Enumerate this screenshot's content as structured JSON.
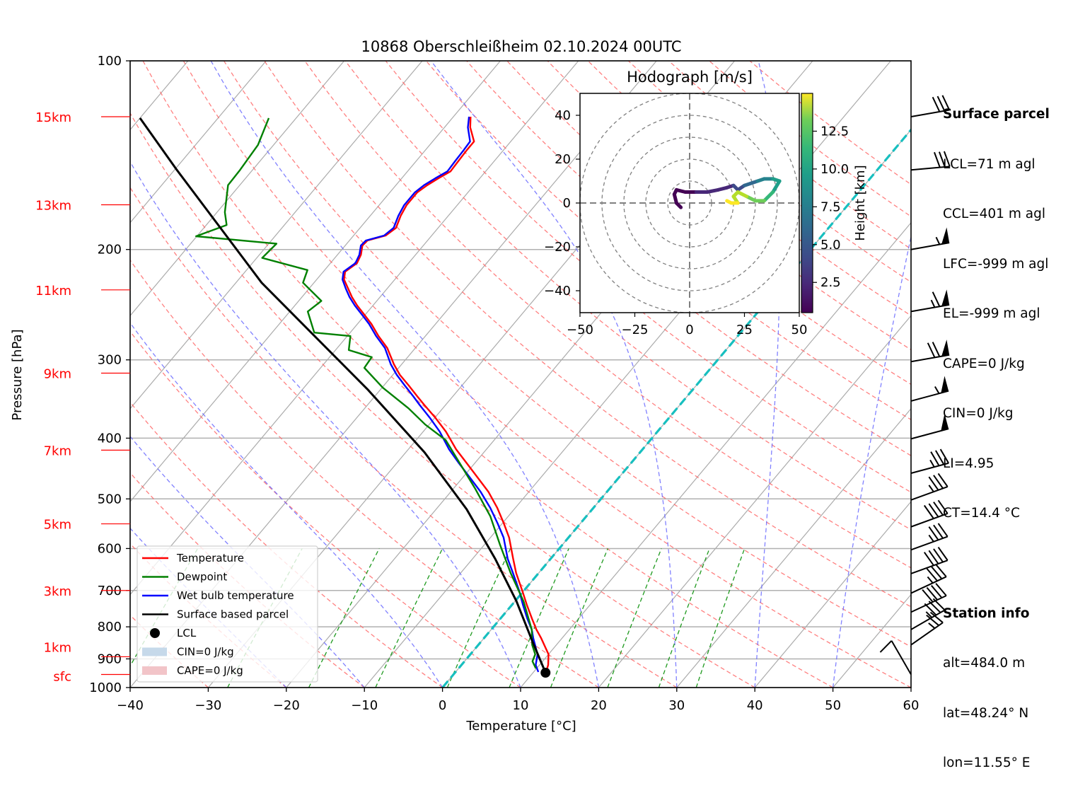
{
  "chart_data": {
    "type": "skewt",
    "title": "10868 Oberschleißheim 02.10.2024 00UTC",
    "xlabel": "Temperature [°C]",
    "ylabel": "Pressure [hPa]",
    "xlim": [
      -40,
      60
    ],
    "ylim_hpa": [
      1000,
      100
    ],
    "x_ticks": [
      -40,
      -30,
      -20,
      -10,
      0,
      10,
      20,
      30,
      40,
      50,
      60
    ],
    "x_tick_labels": [
      "−40",
      "−30",
      "−20",
      "−10",
      "0",
      "10",
      "20",
      "30",
      "40",
      "50",
      "60"
    ],
    "p_ticks": [
      100,
      200,
      300,
      400,
      500,
      600,
      700,
      800,
      900,
      1000
    ],
    "p_tick_labels": [
      "100",
      "200",
      "300",
      "400",
      "500",
      "600",
      "700",
      "800",
      "900",
      "1000"
    ],
    "height_markers": [
      {
        "label": "15km",
        "p": 122.8
      },
      {
        "label": "13km",
        "p": 169.7
      },
      {
        "label": "11km",
        "p": 232.0
      },
      {
        "label": "9km",
        "p": 315.0
      },
      {
        "label": "7km",
        "p": 418.0
      },
      {
        "label": "5km",
        "p": 548.0
      },
      {
        "label": "3km",
        "p": 700.0
      },
      {
        "label": "1km",
        "p": 893.0
      },
      {
        "label": "sfc",
        "p": 953.0
      }
    ],
    "grid": true,
    "freezing_isotherm_c": 0,
    "series": [
      {
        "name": "Temperature",
        "color": "#ff0000",
        "p": [
          122.8,
          127.7,
          134.5,
          138.8,
          144.6,
          150.1,
          154.0,
          157.9,
          162.1,
          169.9,
          176.7,
          184.7,
          190.0,
          193.5,
          197.1,
          203.9,
          210.3,
          217.0,
          223.3,
          230.9,
          238.2,
          245.8,
          254.2,
          263.0,
          274.9,
          287.2,
          304.9,
          317.0,
          329.7,
          342.8,
          353.6,
          370.7,
          390.4,
          416.6,
          438.8,
          462.2,
          486.9,
          516.9,
          547.1,
          576.4,
          623.1,
          656.4,
          700.6,
          737.9,
          777.3,
          808.3,
          833.7,
          885.1,
          920.2,
          944.5
        ],
        "t": [
          -57.8,
          -56.7,
          -54.7,
          -54.7,
          -54.6,
          -54.5,
          -55.3,
          -56.0,
          -56.5,
          -56.5,
          -56.1,
          -55.4,
          -55.9,
          -57.7,
          -57.8,
          -57.0,
          -56.6,
          -57.2,
          -56.5,
          -55.0,
          -53.6,
          -52.0,
          -50.1,
          -48.2,
          -46.0,
          -43.6,
          -41.0,
          -39.1,
          -36.8,
          -34.6,
          -32.8,
          -30.0,
          -27.1,
          -23.9,
          -21.0,
          -18.1,
          -15.2,
          -12.3,
          -9.8,
          -7.6,
          -4.8,
          -2.9,
          -0.2,
          1.9,
          4.1,
          5.8,
          7.3,
          10.0,
          11.1,
          11.6
        ]
      },
      {
        "name": "Dewpoint",
        "color": "#008000",
        "p": [
          123.4,
          136.2,
          149.3,
          157.9,
          174.4,
          182.8,
          190.5,
          195.8,
          206.3,
          215.7,
          226.0,
          241.6,
          251.2,
          271.4,
          274.9,
          289.4,
          297.0,
          308.9,
          332.3,
          358.4,
          380.5,
          402.9,
          438.8,
          480.6,
          532.9,
          591.7,
          656.4,
          728.4,
          808.3,
          855.0,
          885.1,
          908.2,
          932.2
        ],
        "t": [
          -83.5,
          -82.0,
          -81.6,
          -81.5,
          -79.0,
          -77.4,
          -80.1,
          -69.0,
          -69.3,
          -62.2,
          -61.4,
          -57.1,
          -57.7,
          -54.6,
          -49.6,
          -48.3,
          -44.6,
          -44.4,
          -39.9,
          -34.4,
          -30.5,
          -26.2,
          -21.9,
          -17.3,
          -12.3,
          -8.0,
          -3.6,
          1.1,
          5.2,
          6.9,
          8.3,
          8.7,
          9.9
        ]
      },
      {
        "name": "Wet bulb temperature",
        "color": "#0000ff",
        "p": [
          122.8,
          127.7,
          134.5,
          138.8,
          144.6,
          150.1,
          154.0,
          157.9,
          162.1,
          169.9,
          176.7,
          184.7,
          190.0,
          193.5,
          197.1,
          203.9,
          210.3,
          217.0,
          223.3,
          230.9,
          238.2,
          245.8,
          254.2,
          263.0,
          274.9,
          287.2,
          304.9,
          317.0,
          329.7,
          342.8,
          353.6,
          370.7,
          390.4,
          416.6,
          438.8,
          462.2,
          486.9,
          516.9,
          547.1,
          576.4,
          623.1,
          656.4,
          700.6,
          737.9,
          777.3,
          808.3,
          833.7,
          885.1,
          920.2,
          944.5
        ],
        "t": [
          -58.0,
          -57.0,
          -55.2,
          -55.1,
          -55.0,
          -54.9,
          -55.7,
          -56.4,
          -56.8,
          -56.8,
          -56.4,
          -55.7,
          -56.1,
          -57.9,
          -58.0,
          -57.2,
          -56.8,
          -57.4,
          -56.7,
          -55.3,
          -53.9,
          -52.3,
          -50.4,
          -48.5,
          -46.3,
          -43.9,
          -41.4,
          -39.5,
          -37.3,
          -35.1,
          -33.4,
          -30.7,
          -27.9,
          -24.8,
          -22.0,
          -19.1,
          -16.2,
          -13.2,
          -10.6,
          -8.3,
          -5.5,
          -3.3,
          -0.6,
          1.4,
          3.5,
          5.2,
          6.3,
          8.6,
          9.5,
          10.6
        ]
      },
      {
        "name": "Surface based parcel",
        "color": "#000000",
        "p": [
          946.9,
          845.1,
          728.4,
          623.1,
          519.3,
          421.4,
          334.2,
          271.4,
          226.0,
          183.7,
          149.3,
          123.4
        ],
        "t": [
          11.6,
          6.6,
          0.2,
          -7.1,
          -16.1,
          -27.6,
          -41.7,
          -55.0,
          -66.7,
          -78.2,
          -89.7,
          -100.0
        ]
      }
    ],
    "lcl": {
      "label": "LCL",
      "p": 947.0,
      "t": 11.6
    },
    "legend": {
      "position": "lower-left",
      "entries": [
        {
          "label": "Temperature",
          "kind": "line",
          "color": "#ff0000"
        },
        {
          "label": "Dewpoint",
          "kind": "line",
          "color": "#008000"
        },
        {
          "label": "Wet bulb temperature",
          "kind": "line",
          "color": "#0000ff"
        },
        {
          "label": "Surface based parcel",
          "kind": "line",
          "color": "#000000"
        },
        {
          "label": "LCL",
          "kind": "marker",
          "color": "#000000"
        },
        {
          "label": "CIN=0 J/kg",
          "kind": "patch",
          "color": "#c6d9ea"
        },
        {
          "label": "CAPE=0 J/kg",
          "kind": "patch",
          "color": "#f2c4c8"
        }
      ]
    },
    "wind_barbs": {
      "units": "kt",
      "p": [
        122.8,
        149.3,
        200.0,
        251.2,
        302.0,
        349.0,
        401.0,
        455.0,
        502.0,
        554.0,
        603.0,
        658.0,
        707.0,
        758.0,
        808.0,
        855.0,
        953.0
      ],
      "speed": [
        30,
        30,
        55,
        65,
        70,
        55,
        50,
        35,
        35,
        40,
        35,
        40,
        35,
        40,
        35,
        25,
        10
      ],
      "direction_deg": [
        260,
        265,
        260,
        260,
        260,
        255,
        255,
        255,
        250,
        250,
        250,
        250,
        245,
        245,
        240,
        235,
        150
      ]
    },
    "hodograph": {
      "title": "Hodograph [m/s]",
      "xlim": [
        -50,
        50
      ],
      "ylim": [
        -50,
        50
      ],
      "x_ticks": [
        -50,
        -25,
        0,
        25,
        50
      ],
      "x_tick_labels": [
        "−50",
        "−25",
        "0",
        "25",
        "50"
      ],
      "y_ticks": [
        40,
        20,
        0,
        -20,
        -40
      ],
      "y_tick_labels": [
        "40",
        "20",
        "0",
        "−20",
        "−40"
      ],
      "rings": [
        10,
        20,
        30,
        40,
        50
      ],
      "colorbar": {
        "label": "Height [km]",
        "range": [
          0.5,
          15.0
        ],
        "ticks": [
          2.5,
          5.0,
          7.5,
          10.0,
          12.5
        ],
        "tick_labels": [
          "2.5",
          "5.0",
          "7.5",
          "10.0",
          "12.5"
        ],
        "colormap": "viridis"
      },
      "u": [
        -4,
        -6,
        -7,
        -6,
        -2,
        3,
        8,
        13,
        17,
        20,
        22,
        25,
        28,
        31,
        34,
        38,
        41,
        38,
        34,
        30,
        26,
        22,
        20,
        22,
        19,
        17
      ],
      "v": [
        -2,
        0,
        4,
        6,
        5,
        5,
        5,
        6,
        7,
        8,
        6,
        8,
        9,
        10,
        11,
        11,
        10,
        5,
        1,
        1,
        3,
        5,
        3,
        0,
        0,
        1
      ],
      "height_km": [
        0.5,
        0.8,
        1.0,
        1.3,
        1.7,
        2.0,
        2.4,
        2.8,
        3.3,
        3.9,
        4.5,
        5.2,
        6.0,
        6.8,
        7.5,
        8.3,
        9.1,
        10.0,
        10.8,
        11.5,
        12.2,
        12.8,
        13.3,
        13.8,
        14.3,
        14.8
      ]
    }
  },
  "info": {
    "surface_parcel_title": "Surface parcel",
    "surface_parcel_lines": [
      "LCL=71 m agl",
      "CCL=401 m agl",
      "LFC=-999 m agl",
      "EL=-999 m agl",
      "CAPE=0 J/kg",
      "CIN=0 J/kg",
      "LI=4.95",
      "CT=14.4 °C"
    ],
    "station_title": "Station info",
    "station_lines": [
      "alt=484.0 m",
      "lat=48.24° N",
      "lon=11.55° E"
    ]
  }
}
